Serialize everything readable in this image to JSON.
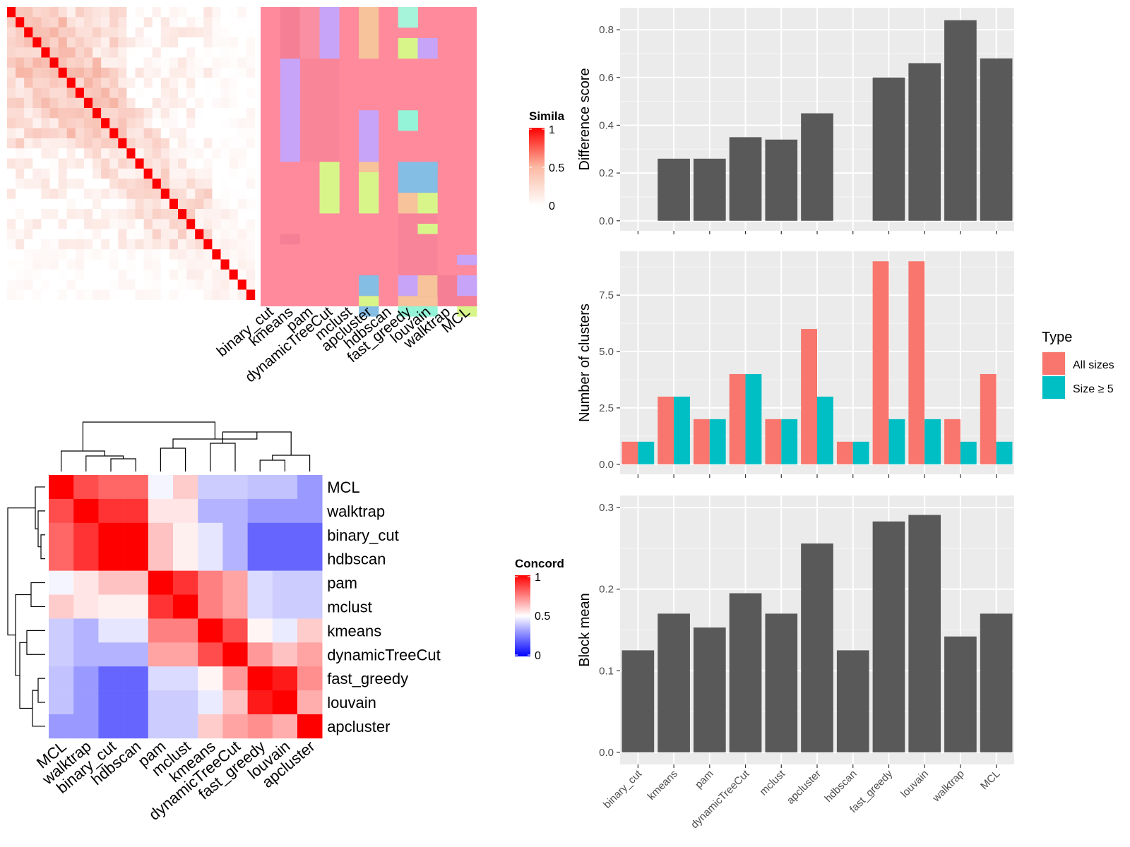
{
  "colors": {
    "bar_gray": "#595959",
    "all_sizes": "#F8766D",
    "size_ge5": "#00BFC4",
    "panel_bg": "#EBEBEB",
    "heat_high": "#FF0000",
    "heat_mid": "#FFFFFF",
    "heat_low": "#0000FF"
  },
  "chart_data": [
    {
      "type": "heatmap",
      "title": "",
      "legend_title": "Simila",
      "legend_ticks": [
        "1",
        "0.5",
        "0"
      ],
      "x_labels": [
        "binary_cut",
        "kmeans",
        "pam",
        "dynamicTreeCut",
        "mclust",
        "apcluster",
        "hdbscan",
        "fast_greedy",
        "louvain",
        "walktrap",
        "MCL"
      ],
      "n_terms": 29,
      "diagonal_value": 1
    },
    {
      "type": "heatmap",
      "title": "",
      "legend_title": "Concord",
      "legend_ticks": [
        "1",
        "0.5",
        "0"
      ],
      "labels": [
        "MCL",
        "walktrap",
        "binary_cut",
        "hdbscan",
        "pam",
        "mclust",
        "kmeans",
        "dynamicTreeCut",
        "fast_greedy",
        "louvain",
        "apcluster"
      ],
      "values": [
        [
          1.0,
          0.85,
          0.8,
          0.8,
          0.48,
          0.6,
          0.4,
          0.4,
          0.38,
          0.38,
          0.3
        ],
        [
          0.85,
          1.0,
          0.9,
          0.9,
          0.55,
          0.55,
          0.35,
          0.35,
          0.3,
          0.3,
          0.3
        ],
        [
          0.8,
          0.9,
          1.0,
          1.0,
          0.62,
          0.53,
          0.45,
          0.35,
          0.2,
          0.2,
          0.2
        ],
        [
          0.8,
          0.9,
          1.0,
          1.0,
          0.62,
          0.53,
          0.45,
          0.35,
          0.2,
          0.2,
          0.2
        ],
        [
          0.48,
          0.55,
          0.62,
          0.62,
          1.0,
          0.9,
          0.75,
          0.68,
          0.43,
          0.4,
          0.4
        ],
        [
          0.6,
          0.55,
          0.53,
          0.53,
          0.9,
          1.0,
          0.75,
          0.68,
          0.43,
          0.4,
          0.4
        ],
        [
          0.4,
          0.35,
          0.45,
          0.45,
          0.75,
          0.75,
          1.0,
          0.85,
          0.52,
          0.46,
          0.6
        ],
        [
          0.4,
          0.35,
          0.35,
          0.35,
          0.68,
          0.68,
          0.85,
          1.0,
          0.7,
          0.62,
          0.68
        ],
        [
          0.38,
          0.3,
          0.2,
          0.2,
          0.43,
          0.43,
          0.52,
          0.7,
          1.0,
          0.95,
          0.72
        ],
        [
          0.38,
          0.3,
          0.2,
          0.2,
          0.4,
          0.4,
          0.46,
          0.62,
          0.95,
          1.0,
          0.66
        ],
        [
          0.3,
          0.3,
          0.2,
          0.2,
          0.4,
          0.4,
          0.6,
          0.68,
          0.72,
          0.66,
          1.0
        ]
      ]
    },
    {
      "type": "bar",
      "title": "",
      "ylabel": "Difference score",
      "xlabel": "",
      "ylim": [
        0,
        0.85
      ],
      "yticks": [
        "0.0",
        "0.2",
        "0.4",
        "0.6",
        "0.8"
      ],
      "categories": [
        "binary_cut",
        "kmeans",
        "pam",
        "dynamicTreeCut",
        "mclust",
        "apcluster",
        "hdbscan",
        "fast_greedy",
        "louvain",
        "walktrap",
        "MCL"
      ],
      "values": [
        0,
        0.26,
        0.26,
        0.35,
        0.34,
        0.45,
        0,
        0.6,
        0.66,
        0.84,
        0.68
      ]
    },
    {
      "type": "bar",
      "title": "",
      "ylabel": "Number of clusters",
      "xlabel": "",
      "ylim": [
        0,
        9
      ],
      "yticks": [
        "0.0",
        "2.5",
        "5.0",
        "7.5"
      ],
      "legend_title": "Type",
      "categories": [
        "binary_cut",
        "kmeans",
        "pam",
        "dynamicTreeCut",
        "mclust",
        "apcluster",
        "hdbscan",
        "fast_greedy",
        "louvain",
        "walktrap",
        "MCL"
      ],
      "series": [
        {
          "name": "All sizes",
          "values": [
            1,
            3,
            2,
            4,
            2,
            6,
            1,
            9,
            9,
            2,
            4
          ]
        },
        {
          "name": "Size ≥ 5",
          "values": [
            1,
            3,
            2,
            4,
            2,
            3,
            1,
            2,
            2,
            1,
            1
          ]
        }
      ]
    },
    {
      "type": "bar",
      "title": "",
      "ylabel": "Block mean",
      "xlabel": "",
      "ylim": [
        0,
        0.3
      ],
      "yticks": [
        "0.0",
        "0.1",
        "0.2",
        "0.3"
      ],
      "categories": [
        "binary_cut",
        "kmeans",
        "pam",
        "dynamicTreeCut",
        "mclust",
        "apcluster",
        "hdbscan",
        "fast_greedy",
        "louvain",
        "walktrap",
        "MCL"
      ],
      "values": [
        0.125,
        0.17,
        0.153,
        0.195,
        0.17,
        0.256,
        0.125,
        0.283,
        0.291,
        0.142,
        0.17
      ]
    }
  ]
}
